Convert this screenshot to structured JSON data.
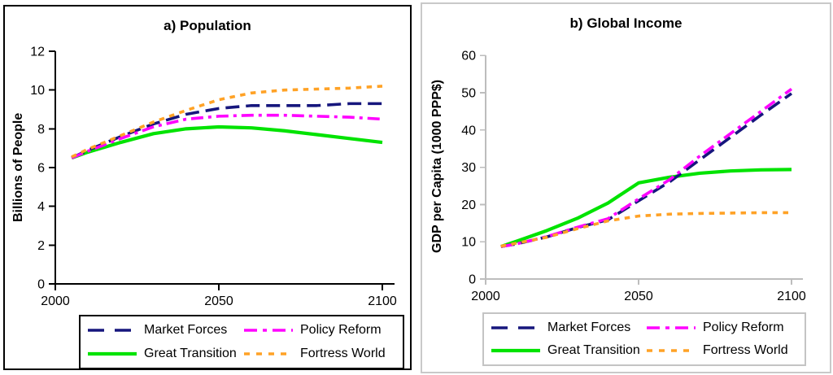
{
  "chart_data": [
    {
      "type": "line",
      "title": "a) Population",
      "xlabel": "",
      "ylabel": "Billions of People",
      "xlim": [
        2000,
        2104
      ],
      "ylim": [
        0,
        12
      ],
      "xticks": [
        2000,
        2050,
        2100
      ],
      "yticks": [
        0,
        2,
        4,
        6,
        8,
        10,
        12
      ],
      "x": [
        2005,
        2010,
        2020,
        2030,
        2040,
        2050,
        2060,
        2070,
        2080,
        2090,
        2100
      ],
      "legend_position": "bottom",
      "grid": false,
      "series": [
        {
          "name": "Market Forces",
          "color": "#16167D",
          "dash": "17 8",
          "width": 3.6,
          "z": 2,
          "values": [
            6.5,
            6.9,
            7.6,
            8.25,
            8.75,
            9.05,
            9.2,
            9.2,
            9.2,
            9.3,
            9.3
          ]
        },
        {
          "name": "Policy Reform",
          "color": "#FF00FF",
          "dash": "15 6 4 6",
          "width": 3.6,
          "z": 3,
          "values": [
            6.5,
            6.85,
            7.5,
            8.1,
            8.5,
            8.65,
            8.7,
            8.7,
            8.65,
            8.6,
            8.5
          ]
        },
        {
          "name": "Great Transition",
          "color": "#00E300",
          "dash": "",
          "width": 4.2,
          "z": 1,
          "values": [
            6.5,
            6.8,
            7.3,
            7.75,
            8.0,
            8.1,
            8.05,
            7.9,
            7.7,
            7.5,
            7.3
          ]
        },
        {
          "name": "Fortress World",
          "color": "#FFA226",
          "dash": "6.5 6.5",
          "width": 3.6,
          "z": 4,
          "values": [
            6.55,
            6.95,
            7.65,
            8.35,
            8.95,
            9.5,
            9.85,
            10.0,
            10.05,
            10.1,
            10.2
          ]
        }
      ]
    },
    {
      "type": "line",
      "title": "b) Global Income",
      "xlabel": "",
      "ylabel": "GDP per Capita (1000 PPP$)",
      "xlim": [
        2000,
        2104
      ],
      "ylim": [
        0,
        60
      ],
      "xticks": [
        2000,
        2050,
        2100
      ],
      "yticks": [
        0,
        10,
        20,
        30,
        40,
        50,
        60
      ],
      "x": [
        2005,
        2010,
        2020,
        2030,
        2040,
        2050,
        2060,
        2070,
        2080,
        2090,
        2100
      ],
      "legend_position": "bottom",
      "grid": false,
      "series": [
        {
          "name": "Market Forces",
          "color": "#16167D",
          "dash": "17 8",
          "width": 3.6,
          "z": 2,
          "values": [
            8.7,
            9.4,
            11.3,
            13.8,
            15.9,
            21.0,
            26.0,
            32.0,
            38.0,
            44.0,
            49.8
          ]
        },
        {
          "name": "Policy Reform",
          "color": "#FF00FF",
          "dash": "15 6 4 6",
          "width": 3.6,
          "z": 3,
          "values": [
            8.7,
            9.4,
            11.4,
            13.9,
            16.2,
            21.5,
            26.6,
            33.0,
            39.0,
            45.0,
            51.0
          ]
        },
        {
          "name": "Great Transition",
          "color": "#00E300",
          "dash": "",
          "width": 4.2,
          "z": 1,
          "values": [
            8.7,
            10.1,
            13.0,
            16.3,
            20.4,
            25.8,
            27.3,
            28.4,
            29.0,
            29.3,
            29.4
          ]
        },
        {
          "name": "Fortress World",
          "color": "#FFA226",
          "dash": "6.5 6.5",
          "width": 3.6,
          "z": 4,
          "values": [
            8.8,
            9.6,
            11.2,
            13.5,
            15.6,
            16.9,
            17.4,
            17.6,
            17.7,
            17.8,
            17.8
          ]
        }
      ]
    }
  ]
}
